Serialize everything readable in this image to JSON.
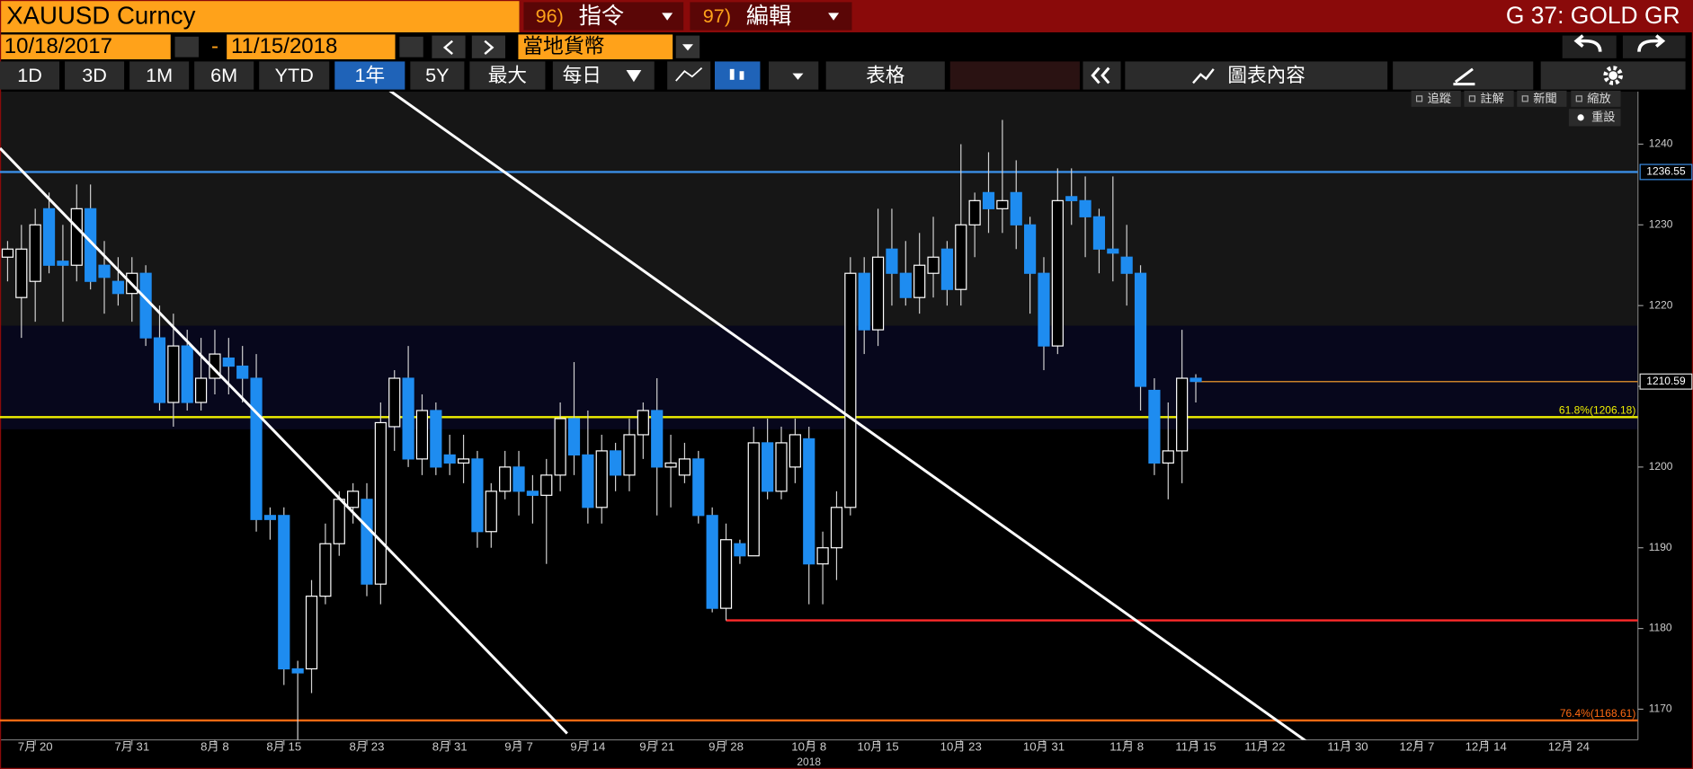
{
  "header": {
    "ticker": "XAUUSD Curncy",
    "menu": [
      {
        "num": "96)",
        "label": "指令"
      },
      {
        "num": "97)",
        "label": "編輯"
      }
    ],
    "page": "G 37: GOLD GR"
  },
  "range": {
    "start": "10/18/2017",
    "sep": "-",
    "end": "11/15/2018",
    "currency": "當地貨幣"
  },
  "periods": [
    "1D",
    "3D",
    "1M",
    "6M",
    "YTD",
    "1年",
    "5Y",
    "最大"
  ],
  "selected_period": "1年",
  "frequency": "每日",
  "table_button": "表格",
  "chart_content": "圖表內容",
  "chart_tools": [
    "追蹤",
    "註解",
    "新聞",
    "縮放"
  ],
  "reset": "重設",
  "chart_data": {
    "type": "candlestick",
    "up_color": "#000000",
    "up_edge": "#ffffff",
    "down_color": "#1e8cf0",
    "wick_color": "#d0d0d0",
    "grid": false,
    "open": [
      1226,
      1221,
      1223,
      1232,
      1225.5,
      1225,
      1232,
      1225,
      1223,
      1221.5,
      1224,
      1216,
      1208,
      1215,
      1208,
      1211,
      1213.5,
      1212.5,
      1211,
      1194,
      1194,
      1175,
      1175,
      1184,
      1190.5,
      1195,
      1196,
      1185.5,
      1205,
      1211,
      1201,
      1207,
      1201.5,
      1200.5,
      1201,
      1192,
      1197,
      1200,
      1197,
      1196.5,
      1199,
      1206,
      1201.5,
      1195,
      1202,
      1199,
      1204,
      1207,
      1200,
      1199,
      1201,
      1194,
      1182.5,
      1190.5,
      1189,
      1203,
      1197,
      1200,
      1203.5,
      1188,
      1190,
      1195,
      1224,
      1217,
      1227,
      1224,
      1221,
      1224,
      1227,
      1222,
      1230,
      1234,
      1232,
      1234,
      1230,
      1224,
      1215,
      1233.5,
      1233,
      1231,
      1227,
      1226,
      1224,
      1209.5,
      1200.5,
      1202,
      1211
    ],
    "high": [
      1228,
      1230,
      1232,
      1234,
      1230,
      1235,
      1235,
      1228,
      1226,
      1226,
      1225,
      1220,
      1219,
      1217,
      1216,
      1217,
      1216,
      1215,
      1214,
      1195,
      1195,
      1176,
      1186,
      1193,
      1197,
      1198,
      1198,
      1208,
      1212,
      1215,
      1209,
      1208,
      1204,
      1204,
      1202,
      1198,
      1202,
      1202,
      1199,
      1201,
      1208,
      1213,
      1207,
      1204,
      1203,
      1206,
      1208,
      1211,
      1204,
      1203,
      1202,
      1195,
      1193,
      1191,
      1205,
      1206,
      1205,
      1206,
      1205,
      1192,
      1197,
      1226,
      1226,
      1232,
      1232,
      1228,
      1229,
      1231,
      1228,
      1240,
      1234,
      1239,
      1243,
      1238,
      1231,
      1226,
      1237,
      1237,
      1236,
      1232,
      1236,
      1230,
      1225,
      1211,
      1208,
      1217,
      1211.5
    ],
    "low": [
      1223,
      1216,
      1218,
      1224,
      1218,
      1223,
      1222,
      1219,
      1220,
      1218,
      1215,
      1207,
      1205,
      1207,
      1207,
      1209,
      1209,
      1208,
      1192,
      1191,
      1173,
      1166,
      1172,
      1183,
      1189,
      1193,
      1184,
      1183,
      1202,
      1200,
      1199,
      1199,
      1199,
      1198,
      1190,
      1190,
      1196,
      1194,
      1193,
      1188,
      1197,
      1199,
      1193,
      1193,
      1197,
      1197,
      1201,
      1194,
      1195,
      1198,
      1193,
      1182,
      1181,
      1188,
      1189,
      1196,
      1196,
      1198,
      1183,
      1183,
      1186,
      1194,
      1214,
      1215,
      1220,
      1220,
      1219,
      1221,
      1220,
      1220,
      1226,
      1229,
      1229,
      1227,
      1219,
      1212,
      1214,
      1230,
      1226,
      1224,
      1223,
      1220,
      1207,
      1199,
      1196,
      1198,
      1208
    ],
    "close": [
      1227,
      1227,
      1230,
      1225,
      1225,
      1232,
      1223,
      1223.5,
      1221.5,
      1224,
      1216,
      1208,
      1215,
      1208,
      1211,
      1214,
      1212.5,
      1211,
      1193.5,
      1193.5,
      1175,
      1174.5,
      1184,
      1190.5,
      1196,
      1197,
      1185.5,
      1205.5,
      1211,
      1201,
      1207,
      1200,
      1200.5,
      1201,
      1192,
      1197,
      1200,
      1197,
      1196.5,
      1199,
      1206,
      1201.5,
      1195,
      1202,
      1199,
      1204,
      1207,
      1200,
      1200.5,
      1201,
      1194,
      1182.5,
      1191,
      1189,
      1203,
      1197,
      1203,
      1204,
      1188,
      1190,
      1195,
      1224,
      1217,
      1226,
      1224,
      1221,
      1225,
      1226,
      1222,
      1230,
      1233,
      1232,
      1233,
      1230,
      1224,
      1215,
      1233,
      1233,
      1231,
      1227,
      1226.5,
      1224,
      1210,
      1200.5,
      1202,
      1211,
      1210.6
    ],
    "xlim": [
      -0.55,
      118
    ],
    "xticks": [
      {
        "value": 2,
        "label": "7月 20"
      },
      {
        "value": 9,
        "label": "7月 31"
      },
      {
        "value": 15,
        "label": "8月 8"
      },
      {
        "value": 20,
        "label": "8月 15"
      },
      {
        "value": 26,
        "label": "8月 23"
      },
      {
        "value": 32,
        "label": "8月 31"
      },
      {
        "value": 37,
        "label": "9月 7"
      },
      {
        "value": 42,
        "label": "9月 14"
      },
      {
        "value": 47,
        "label": "9月 21"
      },
      {
        "value": 52,
        "label": "9月 28"
      },
      {
        "value": 58,
        "label": "10月 8"
      },
      {
        "value": 63,
        "label": "10月 15"
      },
      {
        "value": 69,
        "label": "10月 23"
      },
      {
        "value": 75,
        "label": "10月 31"
      },
      {
        "value": 81,
        "label": "11月 8"
      },
      {
        "value": 86,
        "label": "11月 15"
      },
      {
        "value": 91,
        "label": "11月 22"
      },
      {
        "value": 97,
        "label": "11月 30"
      },
      {
        "value": 102,
        "label": "12月 7"
      },
      {
        "value": 107,
        "label": "12月 14"
      },
      {
        "value": 113,
        "label": "12月 24"
      }
    ],
    "year_labels": [
      {
        "value": 58,
        "label": "2018"
      }
    ],
    "ylim": [
      1166.2,
      1246.5
    ],
    "yticks": [
      1170,
      1180,
      1190,
      1200,
      1210,
      1220,
      1230,
      1240
    ],
    "hlines": [
      {
        "value": 1236.55,
        "color": "#3a8ee6",
        "axis_tag": true
      },
      {
        "value": 1206.18,
        "color": "#f0f000",
        "label": "61.8%(1206.18)"
      },
      {
        "value": 1168.61,
        "color": "#ff6a13",
        "label": "76.4%(1168.61)"
      },
      {
        "value": 1181,
        "color": "#ff2a2a",
        "from": 52
      },
      {
        "value": 1210.59,
        "color": "#c9822a",
        "from": 86,
        "axis_tag": true
      }
    ],
    "trendlines": [
      {
        "x": [
          -0.55,
          40.5
        ],
        "y": [
          1239.5,
          1167
        ],
        "color": "#ffffff"
      },
      {
        "x": [
          27.6,
          94.1
        ],
        "y": [
          1246.7,
          1165.9
        ],
        "color": "#ffffff"
      }
    ]
  }
}
